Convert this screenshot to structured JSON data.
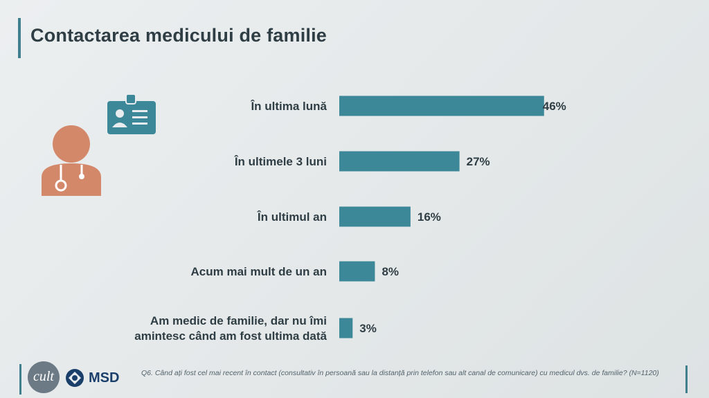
{
  "header": {
    "title": "Contactarea medicului de familie"
  },
  "chart_data": {
    "type": "bar",
    "orientation": "horizontal",
    "title": "Contactarea medicului de familie",
    "categories": [
      [
        "În ultima lună"
      ],
      [
        "În ultimele 3 luni"
      ],
      [
        "În ultimul an"
      ],
      [
        "Acum mai mult de un an"
      ],
      [
        "Am medic de familie, dar nu îmi",
        "amintesc când am fost ultima dată"
      ]
    ],
    "values": [
      46,
      27,
      16,
      8,
      3
    ],
    "value_labels": [
      "46%",
      "27%",
      "16%",
      "8%",
      "3%"
    ],
    "unit": "%",
    "xlim": [
      0,
      100
    ],
    "grid": false,
    "legend": "none",
    "bar_color": "#3c8798"
  },
  "footer": {
    "logo_text": "cult",
    "brand": "MSD",
    "note": "Q6. Când ați fost cel mai recent în contact (consultativ în persoană sau la distanță prin telefon sau alt canal de comunicare) cu medicul dvs. de familie? (N=1120)"
  },
  "icons": [
    "doctor-icon",
    "id-card-icon",
    "msd-logo-icon"
  ]
}
